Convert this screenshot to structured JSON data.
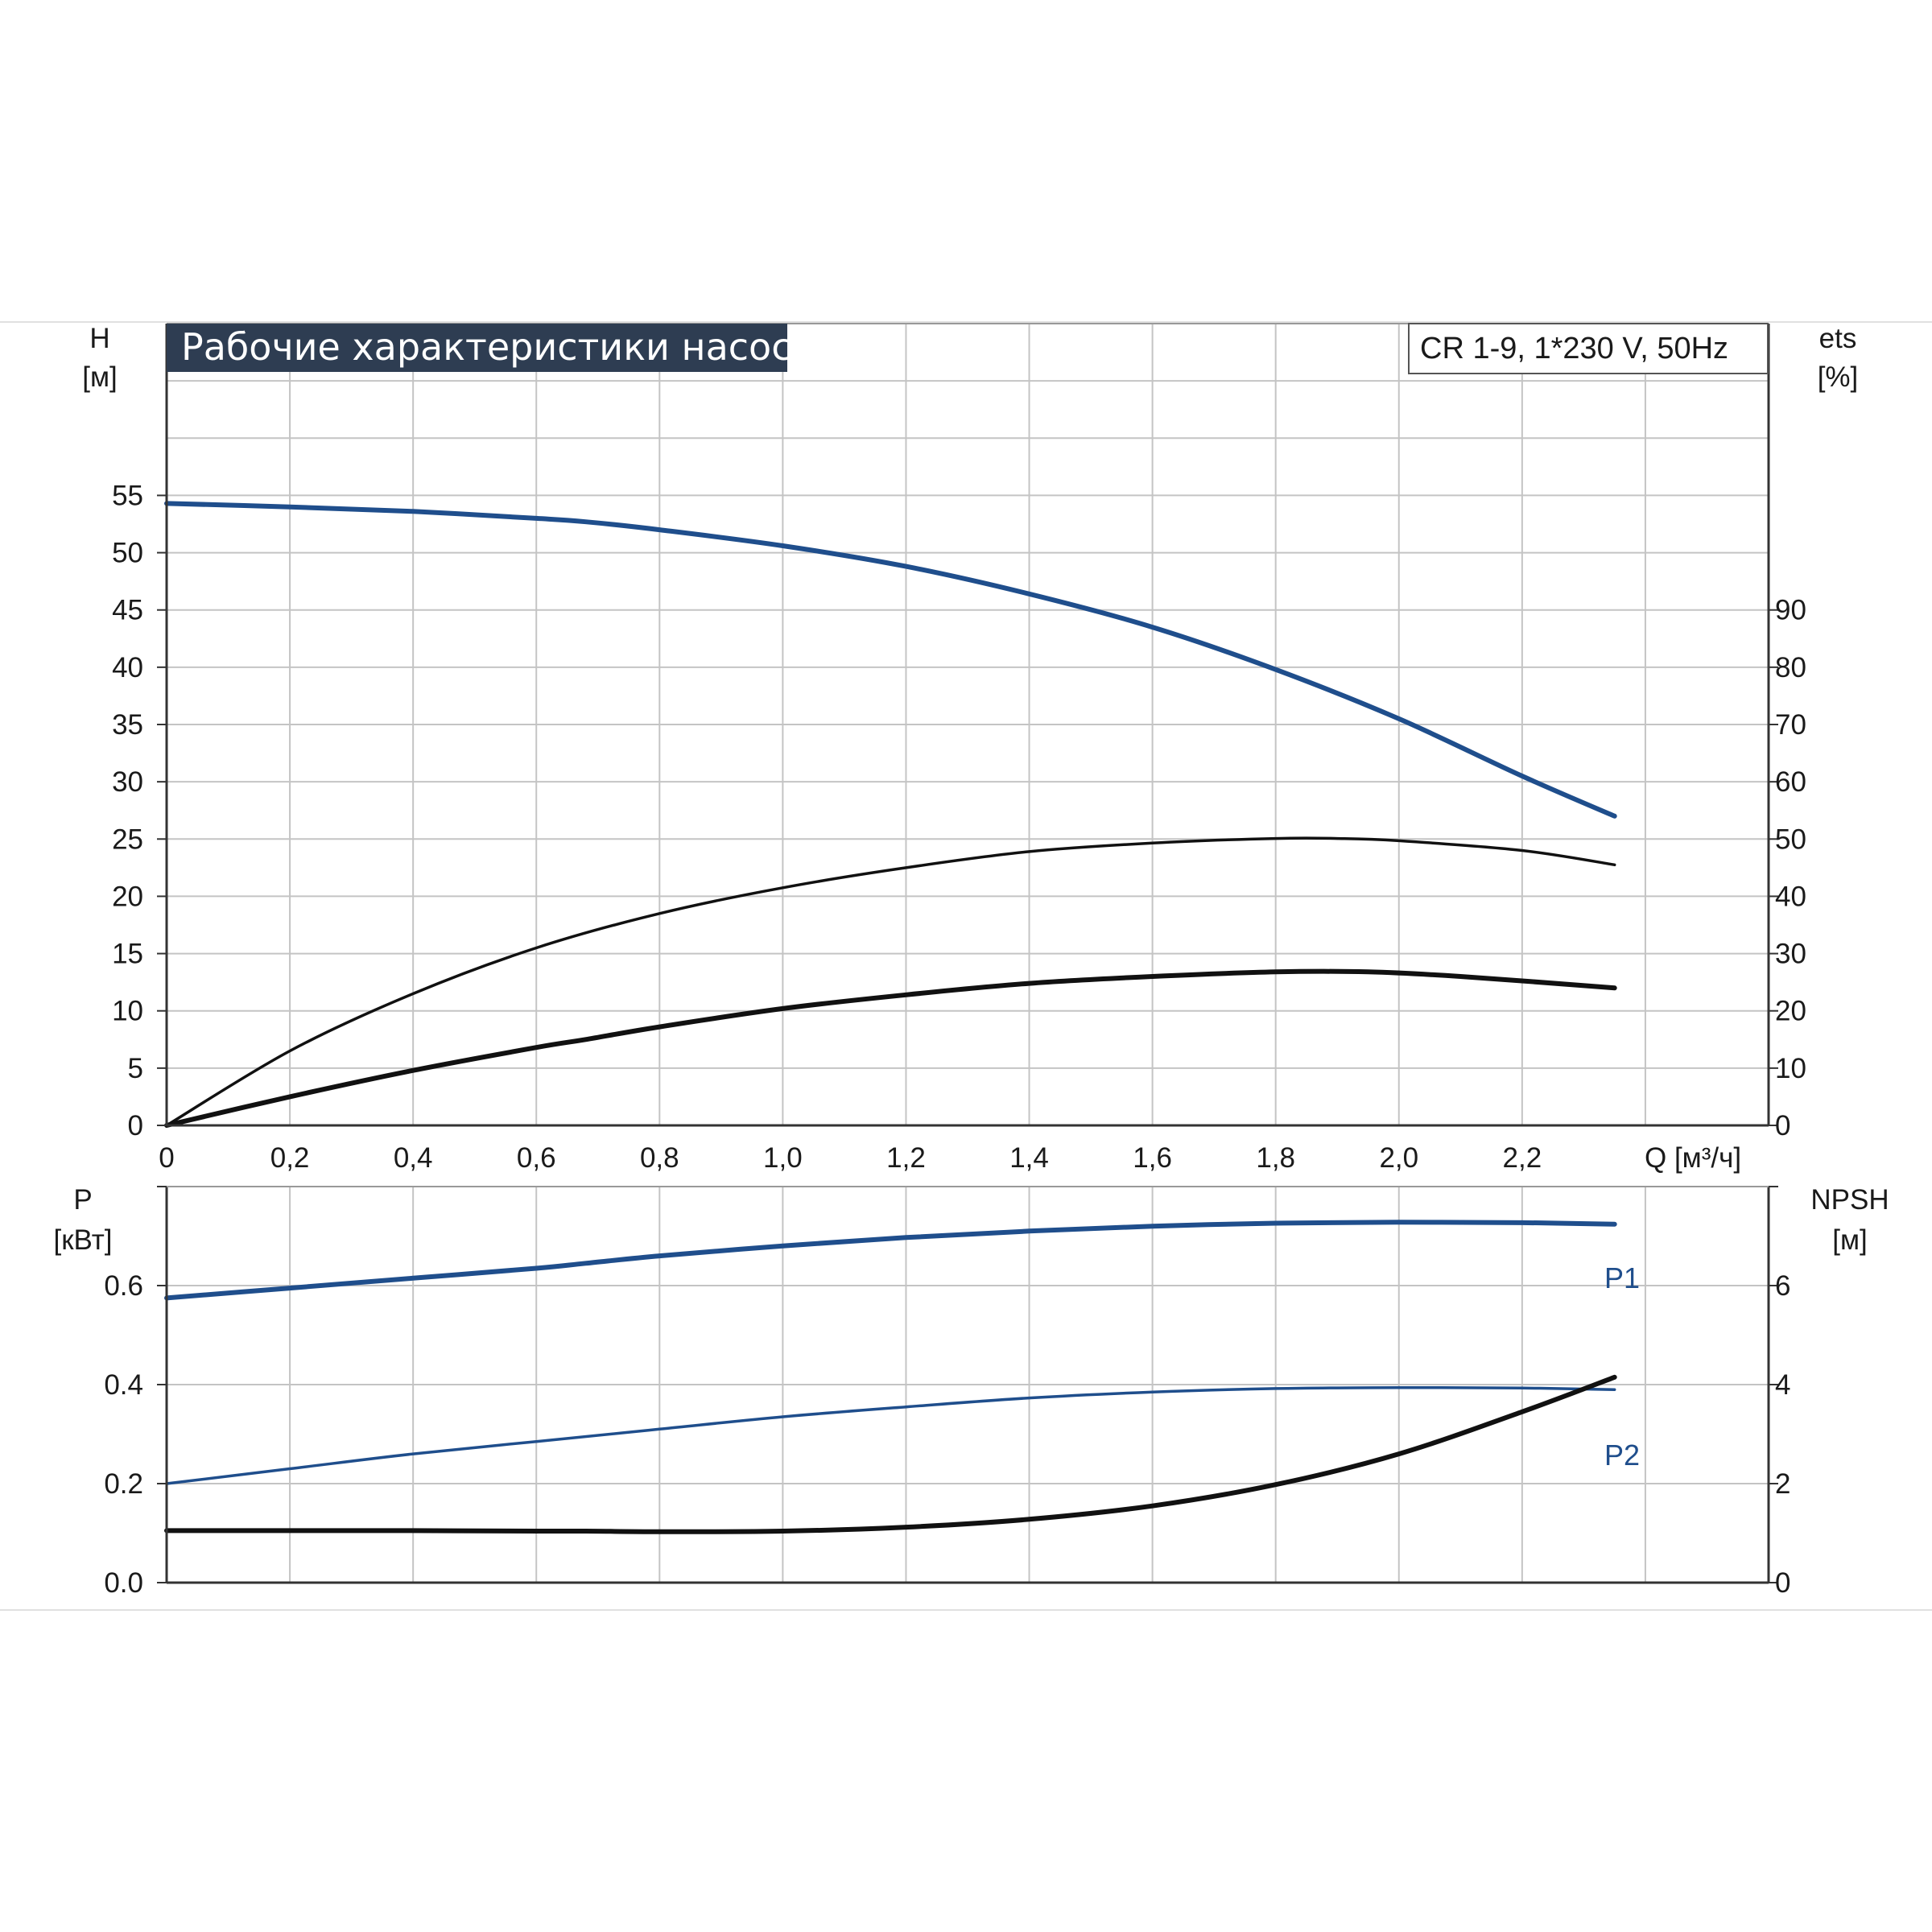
{
  "title": "Рабочие характеристики насоса",
  "model": "CR 1-9, 1*230 V, 50Hz",
  "colors": {
    "blue": "#1f4e8c",
    "black": "#111111",
    "grid": "#c4c4c4",
    "title_bg": "#2e3d52"
  },
  "chart_data": [
    {
      "type": "line",
      "name": "head-efficiency",
      "xlabel": "Q [м³/ч]",
      "x_ticks": [
        "0",
        "0,2",
        "0,4",
        "0,6",
        "0,8",
        "1,0",
        "1,2",
        "1,4",
        "1,6",
        "1,8",
        "2,0",
        "2,2"
      ],
      "xlim": [
        0,
        2.6
      ],
      "ylabel_left": [
        "H",
        "[м]"
      ],
      "ylabel_right": [
        "ets",
        "[%]"
      ],
      "ylim_left": [
        0,
        70
      ],
      "ylim_right": [
        0,
        140
      ],
      "y_ticks_left": [
        "0",
        "5",
        "10",
        "15",
        "20",
        "25",
        "30",
        "35",
        "40",
        "45",
        "50",
        "55"
      ],
      "y_ticks_right": [
        "0",
        "10",
        "20",
        "30",
        "40",
        "50",
        "60",
        "70",
        "80",
        "90"
      ],
      "grid": true,
      "series": [
        {
          "axis": "left",
          "color": "#1f4e8c",
          "x": [
            0,
            0.2,
            0.4,
            0.6,
            0.68,
            0.8,
            1.0,
            1.2,
            1.4,
            1.6,
            1.8,
            2.0,
            2.2,
            2.35
          ],
          "y": [
            54.3,
            54.0,
            53.6,
            53.0,
            52.7,
            52.0,
            50.6,
            48.8,
            46.4,
            43.5,
            39.8,
            35.5,
            30.5,
            27.0
          ]
        },
        {
          "axis": "right",
          "color": "#111111",
          "x": [
            0,
            0.2,
            0.4,
            0.6,
            0.8,
            1.0,
            1.2,
            1.4,
            1.6,
            1.8,
            1.9,
            2.0,
            2.2,
            2.35
          ],
          "y": [
            0,
            13,
            23,
            31,
            37,
            41.5,
            45,
            47.8,
            49.3,
            50.1,
            50.1,
            49.7,
            48.0,
            45.5
          ]
        },
        {
          "axis": "left",
          "color": "#111111",
          "x": [
            0,
            0.2,
            0.4,
            0.6,
            0.68,
            0.8,
            1.0,
            1.2,
            1.4,
            1.6,
            1.8,
            1.95,
            2.1,
            2.35
          ],
          "y": [
            0,
            2.5,
            4.8,
            6.8,
            7.5,
            8.6,
            10.2,
            11.4,
            12.4,
            13.0,
            13.4,
            13.4,
            13.0,
            12.0
          ]
        }
      ]
    },
    {
      "type": "line",
      "name": "power-npsh",
      "xlim": [
        0,
        2.6
      ],
      "ylabel_left": [
        "P",
        "[кВт]"
      ],
      "ylabel_right": [
        "NPSH",
        "[м]"
      ],
      "ylim_left": [
        0,
        0.8
      ],
      "ylim_right": [
        0,
        8
      ],
      "y_ticks_left": [
        "0.0",
        "0.2",
        "0.4",
        "0.6"
      ],
      "y_ticks_right": [
        "0",
        "2",
        "4",
        "6"
      ],
      "grid": true,
      "series": [
        {
          "name": "P1",
          "axis": "left",
          "color": "#1f4e8c",
          "x": [
            0,
            0.2,
            0.4,
            0.6,
            0.68,
            0.8,
            1.0,
            1.2,
            1.4,
            1.6,
            1.8,
            2.0,
            2.2,
            2.35
          ],
          "y": [
            0.575,
            0.595,
            0.615,
            0.635,
            0.645,
            0.66,
            0.68,
            0.697,
            0.71,
            0.72,
            0.726,
            0.728,
            0.727,
            0.724
          ]
        },
        {
          "name": "P2",
          "axis": "left",
          "color": "#1f4e8c",
          "x": [
            0,
            0.2,
            0.4,
            0.6,
            0.8,
            1.0,
            1.2,
            1.4,
            1.6,
            1.8,
            2.0,
            2.2,
            2.35
          ],
          "y": [
            0.2,
            0.23,
            0.26,
            0.285,
            0.31,
            0.335,
            0.355,
            0.373,
            0.385,
            0.392,
            0.394,
            0.393,
            0.39
          ]
        },
        {
          "axis": "right",
          "color": "#111111",
          "x": [
            0,
            0.2,
            0.4,
            0.6,
            0.68,
            0.8,
            1.0,
            1.2,
            1.4,
            1.6,
            1.8,
            2.0,
            2.2,
            2.35
          ],
          "y": [
            1.05,
            1.05,
            1.05,
            1.04,
            1.04,
            1.03,
            1.04,
            1.12,
            1.28,
            1.55,
            1.98,
            2.6,
            3.45,
            4.15
          ]
        }
      ]
    }
  ]
}
